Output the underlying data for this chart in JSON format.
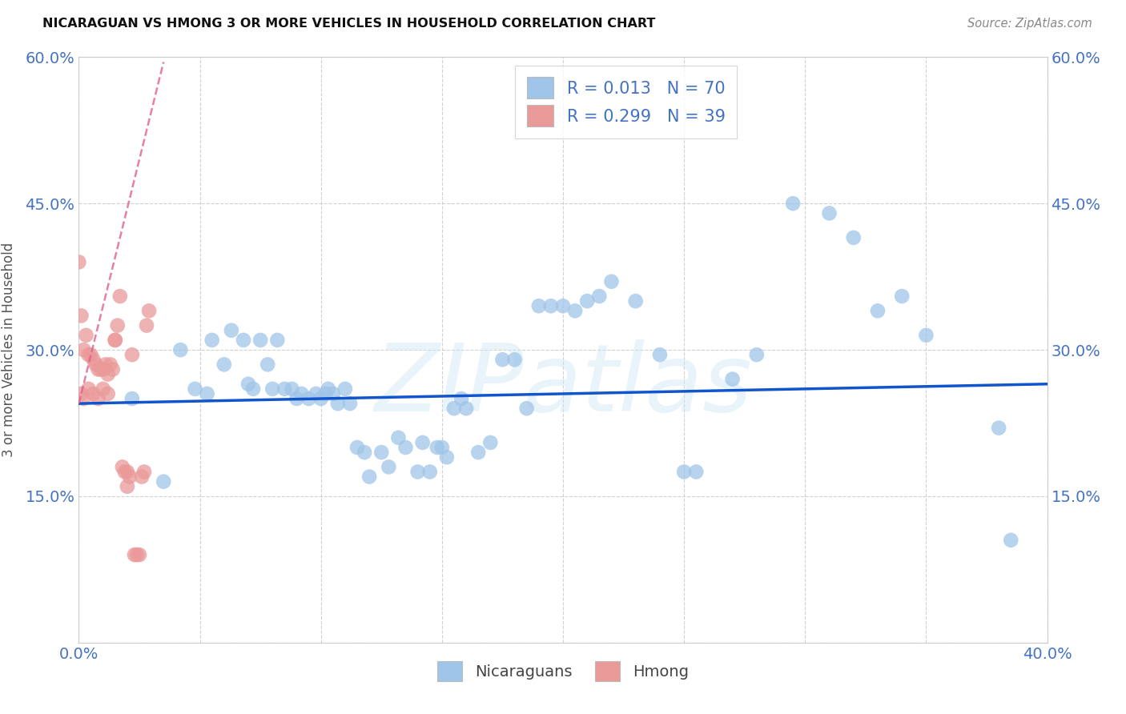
{
  "title": "NICARAGUAN VS HMONG 3 OR MORE VEHICLES IN HOUSEHOLD CORRELATION CHART",
  "source": "Source: ZipAtlas.com",
  "ylabel": "3 or more Vehicles in Household",
  "xlim": [
    0.0,
    0.4
  ],
  "ylim": [
    0.0,
    0.6
  ],
  "blue_color": "#9fc5e8",
  "pink_color": "#ea9999",
  "trend_blue_color": "#1155cc",
  "trend_pink_color": "#e06090",
  "legend_stat_color": "#4472c4",
  "R_blue": 0.013,
  "N_blue": 70,
  "R_pink": 0.299,
  "N_pink": 39,
  "legend_label_blue": "Nicaraguans",
  "legend_label_pink": "Hmong",
  "watermark": "ZIPatlas",
  "blue_scatter_x": [
    0.022,
    0.035,
    0.042,
    0.048,
    0.053,
    0.055,
    0.06,
    0.063,
    0.068,
    0.07,
    0.072,
    0.075,
    0.078,
    0.08,
    0.082,
    0.085,
    0.088,
    0.09,
    0.092,
    0.095,
    0.098,
    0.1,
    0.102,
    0.103,
    0.105,
    0.107,
    0.11,
    0.112,
    0.115,
    0.118,
    0.12,
    0.125,
    0.128,
    0.132,
    0.135,
    0.14,
    0.142,
    0.145,
    0.148,
    0.15,
    0.152,
    0.155,
    0.158,
    0.16,
    0.165,
    0.17,
    0.175,
    0.18,
    0.185,
    0.19,
    0.195,
    0.2,
    0.205,
    0.21,
    0.215,
    0.22,
    0.23,
    0.24,
    0.25,
    0.255,
    0.27,
    0.28,
    0.295,
    0.31,
    0.32,
    0.33,
    0.34,
    0.35,
    0.38,
    0.385
  ],
  "blue_scatter_y": [
    0.25,
    0.165,
    0.3,
    0.26,
    0.255,
    0.31,
    0.285,
    0.32,
    0.31,
    0.265,
    0.26,
    0.31,
    0.285,
    0.26,
    0.31,
    0.26,
    0.26,
    0.25,
    0.255,
    0.25,
    0.255,
    0.25,
    0.255,
    0.26,
    0.255,
    0.245,
    0.26,
    0.245,
    0.2,
    0.195,
    0.17,
    0.195,
    0.18,
    0.21,
    0.2,
    0.175,
    0.205,
    0.175,
    0.2,
    0.2,
    0.19,
    0.24,
    0.25,
    0.24,
    0.195,
    0.205,
    0.29,
    0.29,
    0.24,
    0.345,
    0.345,
    0.345,
    0.34,
    0.35,
    0.355,
    0.37,
    0.35,
    0.295,
    0.175,
    0.175,
    0.27,
    0.295,
    0.45,
    0.44,
    0.415,
    0.34,
    0.355,
    0.315,
    0.22,
    0.105
  ],
  "pink_scatter_x": [
    0.0,
    0.001,
    0.002,
    0.003,
    0.004,
    0.005,
    0.006,
    0.007,
    0.008,
    0.009,
    0.01,
    0.011,
    0.012,
    0.013,
    0.014,
    0.015,
    0.016,
    0.017,
    0.018,
    0.019,
    0.02,
    0.021,
    0.022,
    0.023,
    0.024,
    0.025,
    0.026,
    0.027,
    0.028,
    0.029,
    0.001,
    0.002,
    0.004,
    0.006,
    0.008,
    0.01,
    0.012,
    0.015,
    0.02
  ],
  "pink_scatter_y": [
    0.39,
    0.335,
    0.3,
    0.315,
    0.295,
    0.295,
    0.29,
    0.285,
    0.28,
    0.28,
    0.28,
    0.285,
    0.275,
    0.285,
    0.28,
    0.31,
    0.325,
    0.355,
    0.18,
    0.175,
    0.175,
    0.17,
    0.295,
    0.09,
    0.09,
    0.09,
    0.17,
    0.175,
    0.325,
    0.34,
    0.255,
    0.25,
    0.26,
    0.255,
    0.25,
    0.26,
    0.255,
    0.31,
    0.16
  ],
  "blue_trend_x": [
    0.0,
    0.4
  ],
  "blue_trend_y": [
    0.245,
    0.265
  ],
  "pink_trend_x": [
    0.0,
    0.035
  ],
  "pink_trend_y": [
    0.245,
    0.595
  ]
}
